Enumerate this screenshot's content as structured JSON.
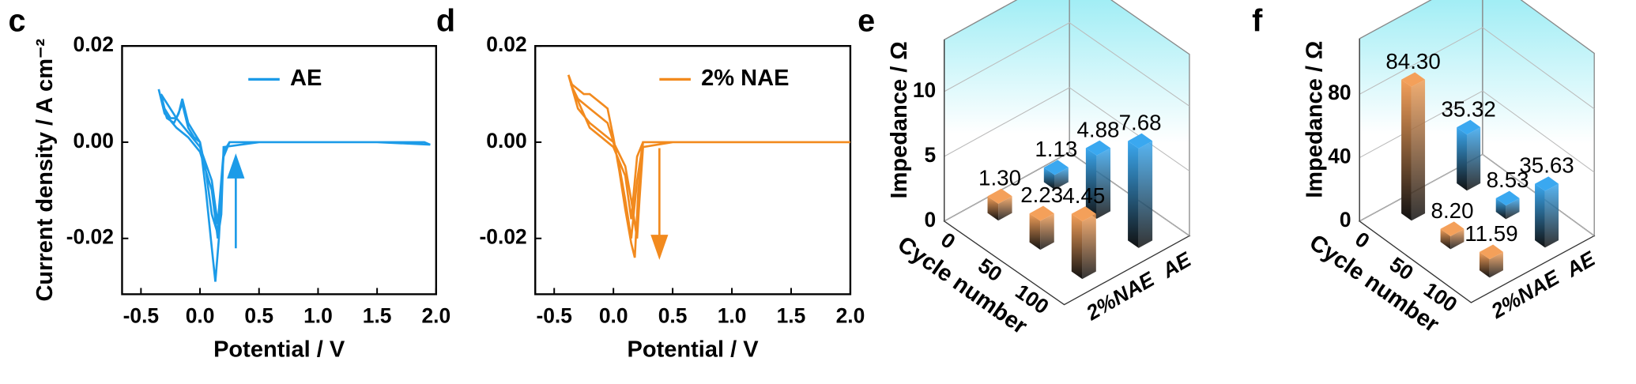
{
  "chart_data": [
    {
      "type": "line",
      "panel": "c",
      "ylabel": "Current density / A cm⁻²",
      "xlabel": "Potential / V",
      "xlim": [
        -0.66,
        2.0
      ],
      "ylim": [
        -0.0316,
        0.02
      ],
      "xticks": [
        {
          "value": -0.5,
          "label": "-0.5"
        },
        {
          "value": 0,
          "label": "0.0"
        },
        0.5,
        {
          "value": 1,
          "label": "1.0"
        },
        1.5,
        {
          "value": 2,
          "label": "2.0"
        }
      ],
      "yticks": [
        {
          "value": -0.02,
          "label": "-0.02"
        },
        {
          "value": 0,
          "label": "0.00"
        },
        0.02
      ],
      "series": [
        {
          "name": "AE",
          "color": "#1c9be8",
          "x": [
            -0.35,
            -0.32,
            -0.28,
            -0.22,
            -0.18,
            -0.15,
            -0.1,
            -0.05,
            0.0,
            0.05,
            0.1,
            0.13,
            0.16,
            0.2,
            0.25,
            0.5,
            1.0,
            1.5,
            1.9,
            1.95,
            1.5,
            1.0,
            0.5,
            0.2,
            0.18,
            0.15,
            0.1,
            0.0,
            -0.1,
            -0.2,
            -0.3,
            -0.35,
            null,
            -0.33,
            -0.3,
            -0.25,
            -0.2,
            -0.15,
            -0.1,
            -0.05,
            0.0,
            0.05,
            0.1,
            0.15,
            0.2,
            0.25,
            0.2,
            0.15,
            0.1,
            0.0,
            -0.1,
            -0.2,
            -0.33
          ],
          "values": [
            0.011,
            0.008,
            0.005,
            0.004,
            0.006,
            0.009,
            0.004,
            0.002,
            0.0,
            -0.01,
            -0.022,
            -0.029,
            -0.02,
            -0.002,
            0,
            0,
            0,
            0,
            0,
            -0.0005,
            0,
            0,
            0,
            -0.001,
            -0.015,
            -0.02,
            -0.01,
            -0.002,
            0.001,
            0.003,
            0.006,
            0.011,
            null,
            0.01,
            0.007,
            0.005,
            0.005,
            0.008,
            0.003,
            0.001,
            0,
            -0.006,
            -0.015,
            -0.019,
            -0.003,
            0,
            -0.002,
            -0.017,
            -0.008,
            -0.001,
            0.002,
            0.005,
            0.01
          ]
        }
      ]
    },
    {
      "type": "line",
      "panel": "d",
      "xlabel": "Potential / V",
      "xlim": [
        -0.66,
        2.0
      ],
      "ylim": [
        -0.0316,
        0.02
      ],
      "xticks": [
        {
          "value": -0.5,
          "label": "-0.5"
        },
        {
          "value": 0,
          "label": "0.0"
        },
        0.5,
        {
          "value": 1,
          "label": "1.0"
        },
        1.5,
        {
          "value": 2,
          "label": "2.0"
        }
      ],
      "yticks": [
        {
          "value": -0.02,
          "label": "-0.02"
        },
        {
          "value": 0,
          "label": "0.00"
        },
        0.02
      ],
      "series": [
        {
          "name": "2% NAE",
          "color": "#f28a1e",
          "x": [
            -0.38,
            -0.35,
            -0.3,
            -0.25,
            -0.2,
            -0.15,
            -0.1,
            -0.05,
            0.0,
            0.05,
            0.1,
            0.15,
            0.18,
            0.21,
            0.25,
            0.5,
            1.0,
            1.5,
            2.0,
            1.5,
            1.0,
            0.5,
            0.25,
            0.22,
            0.2,
            0.15,
            0.1,
            0.0,
            -0.1,
            -0.2,
            -0.3,
            -0.38,
            null,
            -0.36,
            -0.3,
            -0.2,
            -0.1,
            -0.05,
            0.0,
            0.05,
            0.1,
            0.15,
            0.2,
            0.25,
            0.2,
            0.15,
            0.1,
            0.0,
            -0.1,
            -0.2,
            -0.36
          ],
          "values": [
            0.014,
            0.012,
            0.011,
            0.01,
            0.01,
            0.009,
            0.008,
            0.007,
            0.001,
            -0.006,
            -0.014,
            -0.021,
            -0.024,
            -0.01,
            0,
            0,
            0,
            0,
            0,
            0,
            0,
            0,
            -0.001,
            -0.012,
            -0.02,
            -0.012,
            -0.005,
            0,
            0.002,
            0.004,
            0.007,
            0.014,
            null,
            0.012,
            0.009,
            0.007,
            0.005,
            0.004,
            0.0,
            -0.005,
            -0.012,
            -0.02,
            -0.008,
            0,
            -0.003,
            -0.016,
            -0.007,
            -0.001,
            0.001,
            0.003,
            0.012
          ]
        }
      ]
    },
    {
      "type": "bar3d",
      "panel": "e",
      "zlabel": "Impedance / Ω",
      "xlabel": "Cycle number",
      "categories": [
        "0",
        "50",
        "100"
      ],
      "zlim": [
        0,
        14
      ],
      "zticks": [
        0,
        5,
        10
      ],
      "series": [
        {
          "name": "AE",
          "color": "#3aa8f0",
          "values": [
            1.13,
            4.88,
            7.68
          ],
          "value_labels": [
            "1.13",
            "4.88",
            "7.68"
          ]
        },
        {
          "name": "2%NAE",
          "color": "#f4a05a",
          "values": [
            1.3,
            2.23,
            4.45
          ],
          "value_labels": [
            "1.30",
            "2.23",
            "4.45"
          ]
        }
      ]
    },
    {
      "type": "bar3d",
      "panel": "f",
      "zlabel": "Impedance / Ω",
      "xlabel": "Cycle number",
      "categories": [
        "0",
        "50",
        "100"
      ],
      "zlim": [
        0,
        115
      ],
      "zticks": [
        0,
        40,
        80
      ],
      "series": [
        {
          "name": "AE",
          "color": "#3aa8f0",
          "values": [
            35.32,
            8.53,
            35.63
          ],
          "value_labels": [
            "35.32",
            "8.53",
            "35.63"
          ]
        },
        {
          "name": "2%NAE",
          "color": "#f4a05a",
          "values": [
            84.3,
            8.2,
            11.59
          ],
          "value_labels": [
            "84.30",
            "8.20",
            "11.59"
          ]
        }
      ]
    }
  ]
}
